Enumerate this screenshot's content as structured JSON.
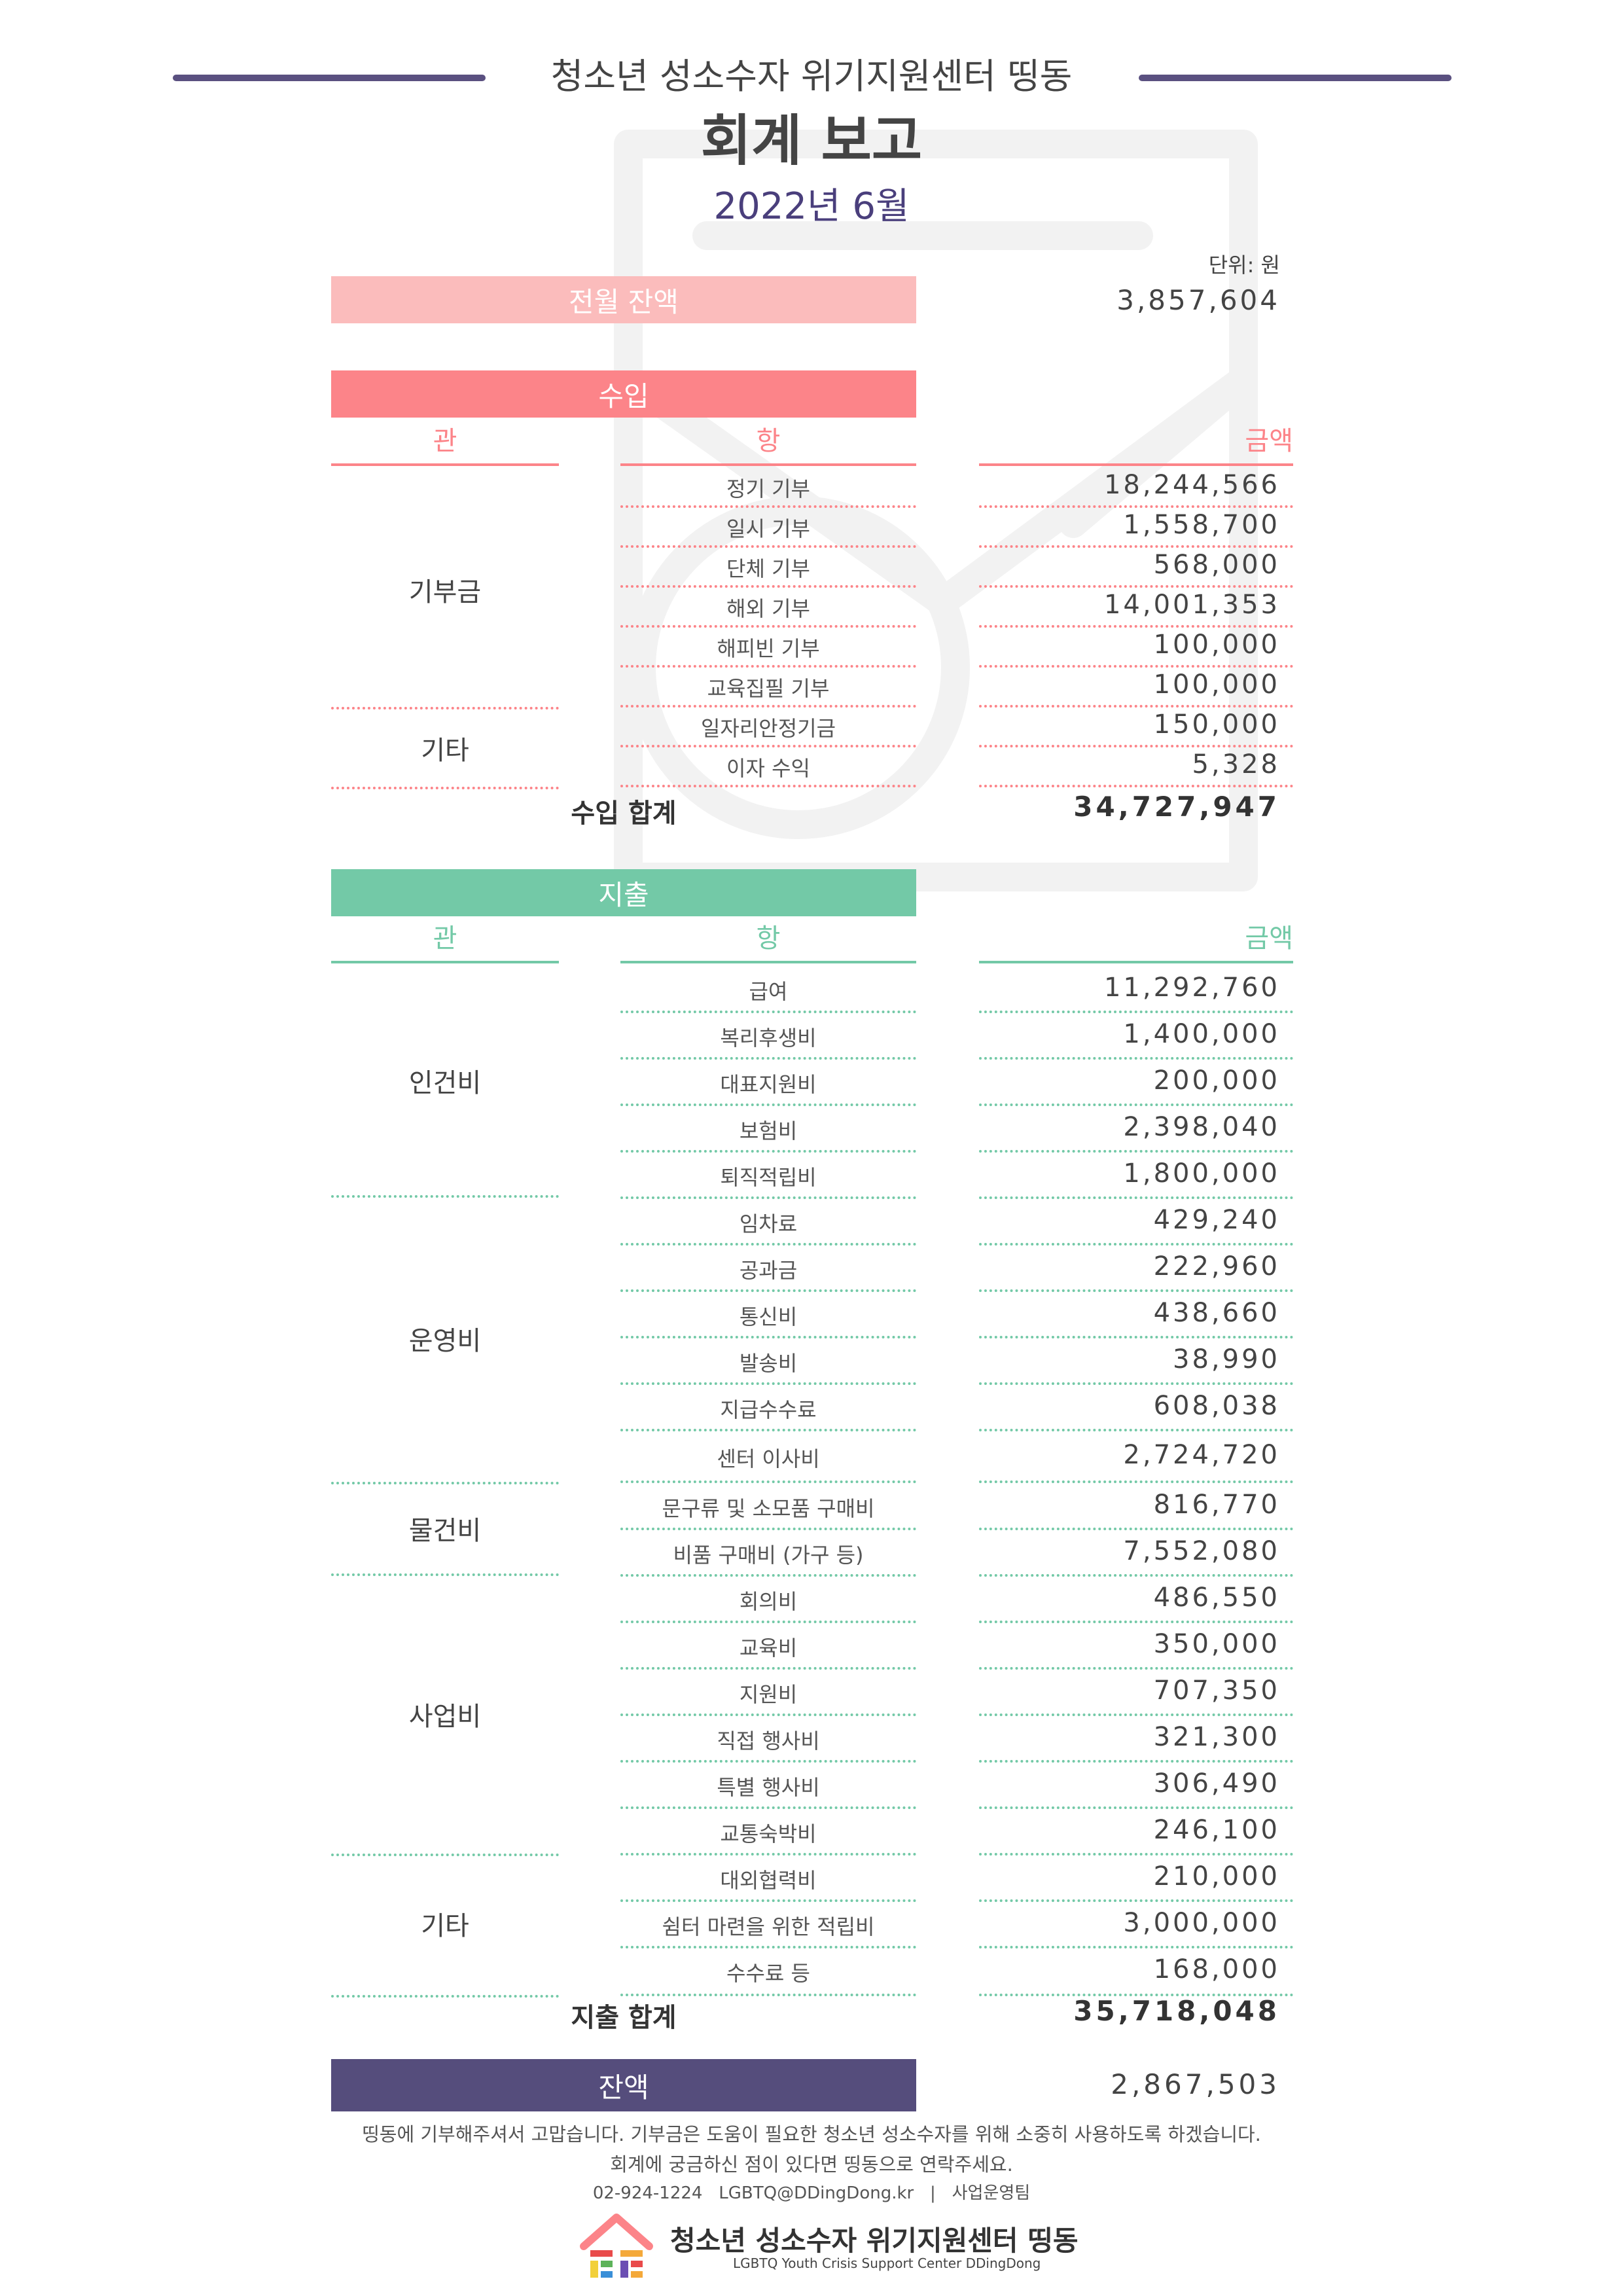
{
  "header": {
    "org_name": "청소년 성소수자 위기지원센터 띵동",
    "title": "회계 보고",
    "period": "2022년 6월",
    "unit": "단위: 원"
  },
  "previous_balance": {
    "label": "전월 잔액",
    "amount": "3,857,604"
  },
  "columns": {
    "gwan": "관",
    "hang": "항",
    "amount": "금액"
  },
  "income": {
    "title": "수입",
    "groups": [
      {
        "name": "기부금",
        "items": [
          {
            "label": "정기 기부",
            "amount": "18,244,566"
          },
          {
            "label": "일시 기부",
            "amount": "1,558,700"
          },
          {
            "label": "단체 기부",
            "amount": "568,000"
          },
          {
            "label": "해외 기부",
            "amount": "14,001,353"
          },
          {
            "label": "해피빈 기부",
            "amount": "100,000"
          },
          {
            "label": "교육집필 기부",
            "amount": "100,000"
          }
        ]
      },
      {
        "name": "기타",
        "items": [
          {
            "label": "일자리안정기금",
            "amount": "150,000"
          },
          {
            "label": "이자 수익",
            "amount": "5,328"
          }
        ]
      }
    ],
    "total_label": "수입 합계",
    "total_amount": "34,727,947"
  },
  "expense": {
    "title": "지출",
    "groups": [
      {
        "name": "인건비",
        "items": [
          {
            "label": "급여",
            "amount": "11,292,760"
          },
          {
            "label": "복리후생비",
            "amount": "1,400,000"
          },
          {
            "label": "대표지원비",
            "amount": "200,000"
          },
          {
            "label": "보험비",
            "amount": "2,398,040"
          },
          {
            "label": "퇴직적립비",
            "amount": "1,800,000"
          }
        ]
      },
      {
        "name": "운영비",
        "items": [
          {
            "label": "임차료",
            "amount": "429,240"
          },
          {
            "label": "공과금",
            "amount": "222,960"
          },
          {
            "label": "통신비",
            "amount": "438,660"
          },
          {
            "label": "발송비",
            "amount": "38,990"
          },
          {
            "label": "지급수수료",
            "amount": "608,038"
          },
          {
            "label": "센터 이사비",
            "amount": "2,724,720"
          }
        ]
      },
      {
        "name": "물건비",
        "items": [
          {
            "label": "문구류 및 소모품 구매비",
            "amount": "816,770"
          },
          {
            "label": "비품 구매비 (가구 등)",
            "amount": "7,552,080"
          }
        ]
      },
      {
        "name": "사업비",
        "items": [
          {
            "label": "회의비",
            "amount": "486,550"
          },
          {
            "label": "교육비",
            "amount": "350,000"
          },
          {
            "label": "지원비",
            "amount": "707,350"
          },
          {
            "label": "직접 행사비",
            "amount": "321,300"
          },
          {
            "label": "특별 행사비",
            "amount": "306,490"
          },
          {
            "label": "교통숙박비",
            "amount": "246,100"
          }
        ]
      },
      {
        "name": "기타",
        "items": [
          {
            "label": "대외협력비",
            "amount": "210,000"
          },
          {
            "label": "쉼터 마련을 위한 적립비",
            "amount": "3,000,000"
          },
          {
            "label": "수수료 등",
            "amount": "168,000"
          }
        ]
      }
    ],
    "total_label": "지출 합계",
    "total_amount": "35,718,048"
  },
  "balance": {
    "label": "잔액",
    "amount": "2,867,503"
  },
  "footer": {
    "thanks": "띵동에 기부해주셔서 고맙습니다. 기부금은 도움이 필요한 청소년 성소수자를 위해 소중히 사용하도록 하겠습니다.",
    "contact_line": "회계에 궁금하신 점이 있다면 띵동으로 연락주세요.",
    "info": "02-924-1224   LGBTQ@DDingDong.kr   |   사업운영팀",
    "logo_name": "청소년 성소수자 위기지원센터 띵동",
    "logo_sub": "LGBTQ Youth Crisis Support Center DDingDong"
  },
  "colors": {
    "prev_balance": "#fbbcbc",
    "income": "#fc8489",
    "expense": "#73c9a7",
    "balance": "#554d7c",
    "title_period": "#4a3f7c"
  }
}
